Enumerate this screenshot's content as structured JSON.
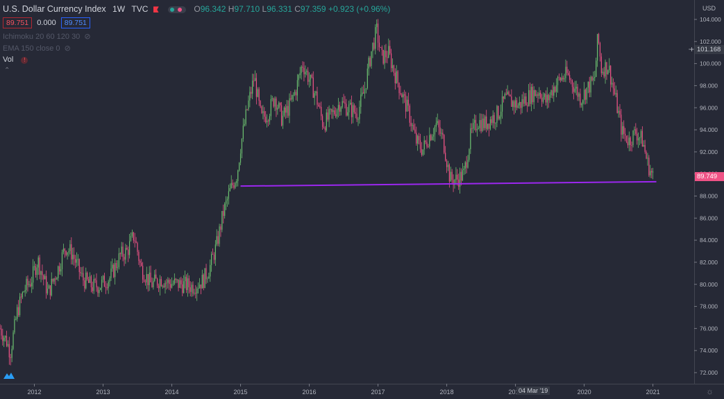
{
  "header": {
    "symbol_title": "U.S. Dollar Currency Index",
    "interval": "1W",
    "source": "TVC",
    "ohlc": {
      "o_label": "O",
      "o_value": "96.342",
      "h_label": "H",
      "h_value": "97.710",
      "l_label": "L",
      "l_value": "96.331",
      "c_label": "C",
      "c_value": "97.359",
      "change": "+0.923 (+0.96%)"
    }
  },
  "trade_row": {
    "sell_price": "89.751",
    "spread": "0.000",
    "buy_price": "89.751"
  },
  "indicators": [
    {
      "label": "Ichimoku 20 60 120 30",
      "icon": "eye-slash-icon"
    },
    {
      "label": "EMA 150 close 0",
      "icon": "eye-slash-icon"
    }
  ],
  "volume": {
    "label": "Vol"
  },
  "axis": {
    "currency": "USD"
  },
  "crosshair": {
    "price": "101.168",
    "date": "04 Mar '19"
  },
  "last_price": "89.749",
  "colors": {
    "up": "#26a69a",
    "up_alt": "#6cc070",
    "down": "#ef5386",
    "line": "#9c27f0",
    "background": "#262936",
    "last_price_bg": "#ef5386"
  },
  "chart_data": {
    "type": "candlestick",
    "y_ticks": [
      "72.000",
      "74.000",
      "76.000",
      "78.000",
      "80.000",
      "82.000",
      "84.000",
      "86.000",
      "88.000",
      "90.000",
      "92.000",
      "94.000",
      "96.000",
      "98.000",
      "100.000",
      "102.000",
      "104.000"
    ],
    "x_ticks": [
      "2012",
      "2013",
      "2014",
      "2015",
      "2016",
      "2017",
      "2018",
      "2019",
      "2020",
      "2021"
    ],
    "ylim": [
      71,
      105
    ],
    "xlim": [
      2011.5,
      2021.6
    ],
    "close_path": [
      [
        2011.5,
        76.0
      ],
      [
        2011.6,
        74.8
      ],
      [
        2011.65,
        73.8
      ],
      [
        2011.75,
        77.5
      ],
      [
        2011.85,
        79.5
      ],
      [
        2011.95,
        80.3
      ],
      [
        2012.05,
        82.2
      ],
      [
        2012.2,
        79.2
      ],
      [
        2012.35,
        81.5
      ],
      [
        2012.45,
        83.4
      ],
      [
        2012.55,
        82.8
      ],
      [
        2012.7,
        80.5
      ],
      [
        2012.85,
        79.8
      ],
      [
        2012.95,
        79.9
      ],
      [
        2013.1,
        80.6
      ],
      [
        2013.25,
        82.6
      ],
      [
        2013.35,
        83.0
      ],
      [
        2013.45,
        84.5
      ],
      [
        2013.55,
        81.5
      ],
      [
        2013.7,
        80.0
      ],
      [
        2013.85,
        80.5
      ],
      [
        2013.95,
        80.1
      ],
      [
        2014.15,
        80.0
      ],
      [
        2014.3,
        79.8
      ],
      [
        2014.45,
        80.3
      ],
      [
        2014.55,
        81.5
      ],
      [
        2014.65,
        83.5
      ],
      [
        2014.75,
        86.5
      ],
      [
        2014.85,
        88.5
      ],
      [
        2014.95,
        90.0
      ],
      [
        2015.0,
        92.5
      ],
      [
        2015.1,
        96.0
      ],
      [
        2015.2,
        98.8
      ],
      [
        2015.3,
        95.0
      ],
      [
        2015.4,
        95.5
      ],
      [
        2015.5,
        97.0
      ],
      [
        2015.6,
        95.0
      ],
      [
        2015.7,
        96.0
      ],
      [
        2015.8,
        97.5
      ],
      [
        2015.9,
        100.0
      ],
      [
        2016.0,
        98.6
      ],
      [
        2016.1,
        97.0
      ],
      [
        2016.2,
        94.5
      ],
      [
        2016.35,
        95.5
      ],
      [
        2016.45,
        96.5
      ],
      [
        2016.55,
        96.0
      ],
      [
        2016.7,
        95.5
      ],
      [
        2016.8,
        97.5
      ],
      [
        2016.9,
        101.0
      ],
      [
        2016.98,
        103.0
      ],
      [
        2017.05,
        100.5
      ],
      [
        2017.15,
        101.0
      ],
      [
        2017.25,
        99.0
      ],
      [
        2017.35,
        97.2
      ],
      [
        2017.45,
        95.5
      ],
      [
        2017.55,
        93.0
      ],
      [
        2017.65,
        92.2
      ],
      [
        2017.75,
        93.5
      ],
      [
        2017.85,
        94.5
      ],
      [
        2017.95,
        93.0
      ],
      [
        2018.05,
        89.5
      ],
      [
        2018.15,
        89.5
      ],
      [
        2018.25,
        90.0
      ],
      [
        2018.35,
        93.5
      ],
      [
        2018.45,
        94.8
      ],
      [
        2018.55,
        94.5
      ],
      [
        2018.65,
        95.0
      ],
      [
        2018.75,
        95.5
      ],
      [
        2018.85,
        96.8
      ],
      [
        2018.95,
        96.5
      ],
      [
        2019.05,
        96.2
      ],
      [
        2019.15,
        96.8
      ],
      [
        2019.25,
        97.3
      ],
      [
        2019.35,
        97.5
      ],
      [
        2019.45,
        96.5
      ],
      [
        2019.55,
        97.8
      ],
      [
        2019.65,
        98.6
      ],
      [
        2019.75,
        99.0
      ],
      [
        2019.85,
        98.0
      ],
      [
        2019.95,
        96.8
      ],
      [
        2020.05,
        97.8
      ],
      [
        2020.15,
        98.5
      ],
      [
        2020.2,
        102.5
      ],
      [
        2020.25,
        99.5
      ],
      [
        2020.35,
        99.8
      ],
      [
        2020.45,
        97.0
      ],
      [
        2020.55,
        93.8
      ],
      [
        2020.65,
        93.0
      ],
      [
        2020.75,
        93.8
      ],
      [
        2020.85,
        93.0
      ],
      [
        2020.92,
        91.0
      ],
      [
        2020.98,
        90.0
      ],
      [
        2021.0,
        89.75
      ]
    ],
    "horizontal_line": {
      "start": [
        2015.0,
        88.9
      ],
      "end": [
        2021.05,
        89.3
      ]
    }
  }
}
